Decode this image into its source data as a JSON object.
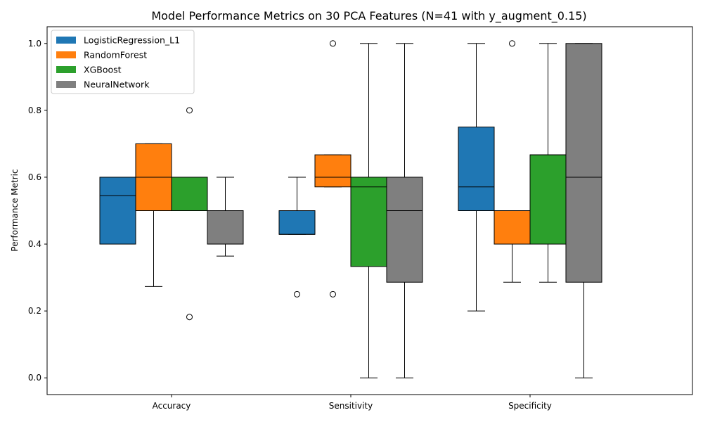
{
  "chart_data": {
    "type": "boxplot",
    "title": "Model Performance Metrics on 30 PCA Features (N=41 with y_augment_0.15)",
    "xlabel": "",
    "ylabel": "Performance Metric",
    "ylim": [
      -0.05,
      1.05
    ],
    "yticks": [
      "0.0",
      "0.2",
      "0.4",
      "0.6",
      "0.8",
      "1.0"
    ],
    "categories": [
      "Accuracy",
      "Sensitivity",
      "Specificity"
    ],
    "legend_position": "top-left",
    "grid": false,
    "series": [
      {
        "name": "LogisticRegression_L1",
        "color": "#1f77b4",
        "boxes": [
          {
            "whisker_low": 0.4,
            "q1": 0.4,
            "median": 0.545,
            "q3": 0.6,
            "whisker_high": 0.6,
            "outliers": []
          },
          {
            "whisker_low": 0.429,
            "q1": 0.429,
            "median": 0.429,
            "q3": 0.5,
            "whisker_high": 0.6,
            "outliers": [
              0.25
            ]
          },
          {
            "whisker_low": 0.2,
            "q1": 0.5,
            "median": 0.571,
            "q3": 0.75,
            "whisker_high": 1.0,
            "outliers": []
          }
        ]
      },
      {
        "name": "RandomForest",
        "color": "#ff7f0e",
        "boxes": [
          {
            "whisker_low": 0.273,
            "q1": 0.5,
            "median": 0.6,
            "q3": 0.7,
            "whisker_high": 0.7,
            "outliers": []
          },
          {
            "whisker_low": 0.571,
            "q1": 0.571,
            "median": 0.6,
            "q3": 0.667,
            "whisker_high": 0.667,
            "outliers": [
              1.0,
              0.25
            ]
          },
          {
            "whisker_low": 0.286,
            "q1": 0.4,
            "median": 0.5,
            "q3": 0.5,
            "whisker_high": 0.5,
            "outliers": [
              1.0
            ]
          }
        ]
      },
      {
        "name": "XGBoost",
        "color": "#2ca02c",
        "boxes": [
          {
            "whisker_low": 0.5,
            "q1": 0.5,
            "median": 0.5,
            "q3": 0.6,
            "whisker_high": 0.6,
            "outliers": [
              0.8,
              0.182
            ]
          },
          {
            "whisker_low": 0.0,
            "q1": 0.333,
            "median": 0.571,
            "q3": 0.6,
            "whisker_high": 1.0,
            "outliers": []
          },
          {
            "whisker_low": 0.286,
            "q1": 0.4,
            "median": 0.667,
            "q3": 0.667,
            "whisker_high": 1.0,
            "outliers": []
          }
        ]
      },
      {
        "name": "NeuralNetwork",
        "color": "#7f7f7f",
        "boxes": [
          {
            "whisker_low": 0.364,
            "q1": 0.4,
            "median": 0.4,
            "q3": 0.5,
            "whisker_high": 0.6,
            "outliers": []
          },
          {
            "whisker_low": 0.0,
            "q1": 0.286,
            "median": 0.5,
            "q3": 0.6,
            "whisker_high": 1.0,
            "outliers": []
          },
          {
            "whisker_low": 0.0,
            "q1": 0.286,
            "median": 0.6,
            "q3": 1.0,
            "whisker_high": 1.0,
            "outliers": []
          }
        ]
      }
    ]
  }
}
